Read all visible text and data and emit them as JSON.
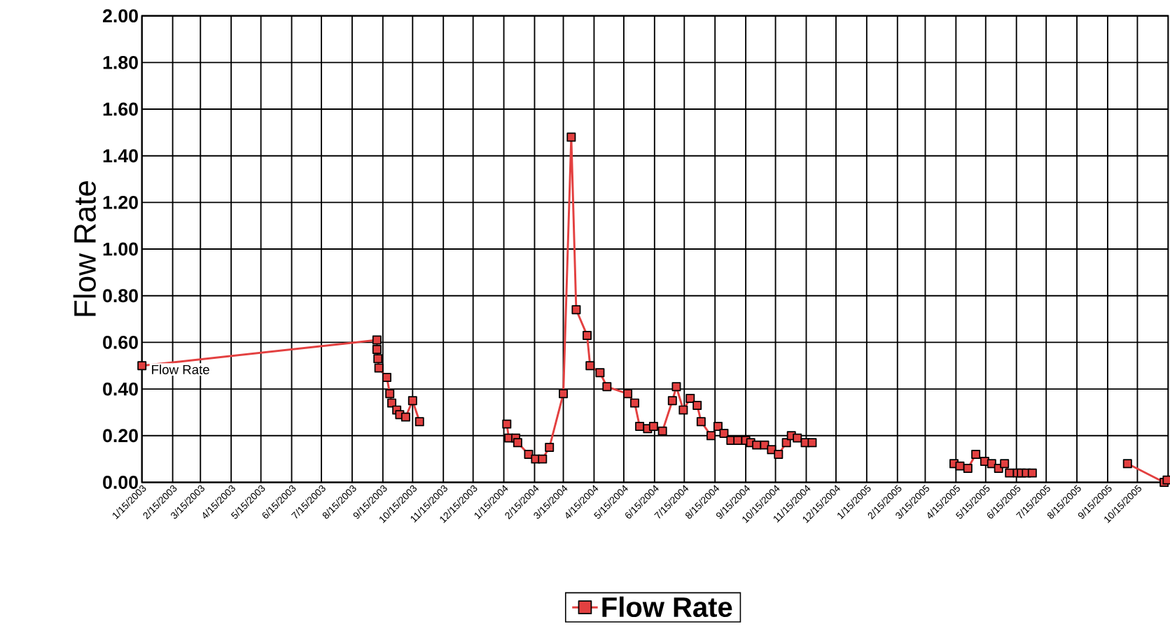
{
  "chart_data": {
    "type": "line",
    "ylabel": "Flow Rate",
    "xlim": [
      "2003-01-15",
      "2005-11-15"
    ],
    "xticks": [
      {
        "value": "2003-01-15",
        "label": "1/15/2003"
      },
      {
        "value": "2003-02-15",
        "label": "2/15/2003"
      },
      {
        "value": "2003-03-15",
        "label": "3/15/2003"
      },
      {
        "value": "2003-04-15",
        "label": "4/15/2003"
      },
      {
        "value": "2003-05-15",
        "label": "5/15/2003"
      },
      {
        "value": "2003-06-15",
        "label": "6/15/2003"
      },
      {
        "value": "2003-07-15",
        "label": "7/15/2003"
      },
      {
        "value": "2003-08-15",
        "label": "8/15/2003"
      },
      {
        "value": "2003-09-15",
        "label": "9/15/2003"
      },
      {
        "value": "2003-10-15",
        "label": "10/15/2003"
      },
      {
        "value": "2003-11-15",
        "label": "11/15/2003"
      },
      {
        "value": "2003-12-15",
        "label": "12/15/2003"
      },
      {
        "value": "2004-01-15",
        "label": "1/15/2004"
      },
      {
        "value": "2004-02-15",
        "label": "2/15/2004"
      },
      {
        "value": "2004-03-15",
        "label": "3/15/2004"
      },
      {
        "value": "2004-04-15",
        "label": "4/15/2004"
      },
      {
        "value": "2004-05-15",
        "label": "5/15/2004"
      },
      {
        "value": "2004-06-15",
        "label": "6/15/2004"
      },
      {
        "value": "2004-07-15",
        "label": "7/15/2004"
      },
      {
        "value": "2004-08-15",
        "label": "8/15/2004"
      },
      {
        "value": "2004-09-15",
        "label": "9/15/2004"
      },
      {
        "value": "2004-10-15",
        "label": "10/15/2004"
      },
      {
        "value": "2004-11-15",
        "label": "11/15/2004"
      },
      {
        "value": "2004-12-15",
        "label": "12/15/2004"
      },
      {
        "value": "2005-01-15",
        "label": "1/15/2005"
      },
      {
        "value": "2005-02-15",
        "label": "2/15/2005"
      },
      {
        "value": "2005-03-15",
        "label": "3/15/2005"
      },
      {
        "value": "2005-04-15",
        "label": "4/15/2005"
      },
      {
        "value": "2005-05-15",
        "label": "5/15/2005"
      },
      {
        "value": "2005-06-15",
        "label": "6/15/2005"
      },
      {
        "value": "2005-07-15",
        "label": "7/15/2005"
      },
      {
        "value": "2005-08-15",
        "label": "8/15/2005"
      },
      {
        "value": "2005-09-15",
        "label": "9/15/2005"
      },
      {
        "value": "2005-10-15",
        "label": "10/15/2005"
      }
    ],
    "ylim": [
      0,
      2
    ],
    "yticks": [
      {
        "value": 0,
        "label": "0.00"
      },
      {
        "value": 0.2,
        "label": "0.20"
      },
      {
        "value": 0.4,
        "label": "0.40"
      },
      {
        "value": 0.6,
        "label": "0.60"
      },
      {
        "value": 0.8,
        "label": "0.80"
      },
      {
        "value": 1.0,
        "label": "1.00"
      },
      {
        "value": 1.2,
        "label": "1.20"
      },
      {
        "value": 1.4,
        "label": "1.40"
      },
      {
        "value": 1.6,
        "label": "1.60"
      },
      {
        "value": 1.8,
        "label": "1.80"
      },
      {
        "value": 2.0,
        "label": "2.00"
      }
    ],
    "grid": true,
    "legend": "bottom",
    "marker": "square",
    "line_style": "solid",
    "annotations": [
      {
        "text": "Flow Rate",
        "x": "2003-01-15",
        "y": 0.5
      }
    ],
    "series": [
      {
        "name": "Flow Rate",
        "color": "#e34040",
        "x": [
          "2003-01-15",
          "2003-09-09",
          "2003-09-09",
          "2003-09-10",
          "2003-09-11",
          "2003-09-19",
          "2003-09-22",
          "2003-09-24",
          "2003-09-29",
          "2003-10-02",
          "2003-10-08",
          "2003-10-15",
          "2003-10-22",
          "2003-12-01",
          "2004-01-18",
          "2004-01-20",
          "2004-01-27",
          "2004-01-29",
          "2004-02-09",
          "2004-02-16",
          "2004-02-23",
          "2004-03-01",
          "2004-03-15",
          "2004-03-23",
          "2004-03-28",
          "2004-04-08",
          "2004-04-11",
          "2004-04-21",
          "2004-04-28",
          "2004-05-19",
          "2004-05-26",
          "2004-05-31",
          "2004-06-08",
          "2004-06-14",
          "2004-06-23",
          "2004-07-03",
          "2004-07-07",
          "2004-07-14",
          "2004-07-21",
          "2004-07-28",
          "2004-08-01",
          "2004-08-11",
          "2004-08-18",
          "2004-08-24",
          "2004-08-31",
          "2004-09-07",
          "2004-09-15",
          "2004-09-20",
          "2004-09-26",
          "2004-10-04",
          "2004-10-11",
          "2004-10-18",
          "2004-10-26",
          "2004-10-31",
          "2004-11-06",
          "2004-11-14",
          "2004-11-21",
          "2005-01-15",
          "2005-04-13",
          "2005-04-19",
          "2005-04-27",
          "2005-05-05",
          "2005-05-14",
          "2005-05-21",
          "2005-05-28",
          "2005-06-03",
          "2005-06-08",
          "2005-06-16",
          "2005-06-20",
          "2005-06-25",
          "2005-07-01",
          "2005-08-15",
          "2005-10-05",
          "2005-11-11",
          "2005-11-14"
        ],
        "values": [
          0.5,
          0.61,
          0.57,
          0.53,
          0.49,
          0.45,
          0.38,
          0.34,
          0.31,
          0.29,
          0.28,
          0.35,
          0.26,
          null,
          0.25,
          0.19,
          0.19,
          0.17,
          0.12,
          0.1,
          0.1,
          0.15,
          0.38,
          1.48,
          0.74,
          0.63,
          0.5,
          0.47,
          0.41,
          0.38,
          0.34,
          0.24,
          0.23,
          0.24,
          0.22,
          0.35,
          0.41,
          0.31,
          0.36,
          0.33,
          0.26,
          0.2,
          0.24,
          0.21,
          0.18,
          0.18,
          0.18,
          0.17,
          0.16,
          0.16,
          0.14,
          0.12,
          0.17,
          0.2,
          0.19,
          0.17,
          0.17,
          null,
          0.08,
          0.07,
          0.06,
          0.12,
          0.09,
          0.08,
          0.06,
          0.08,
          0.04,
          0.04,
          0.04,
          0.04,
          0.04,
          null,
          0.08,
          0.0,
          0.01
        ]
      }
    ]
  }
}
